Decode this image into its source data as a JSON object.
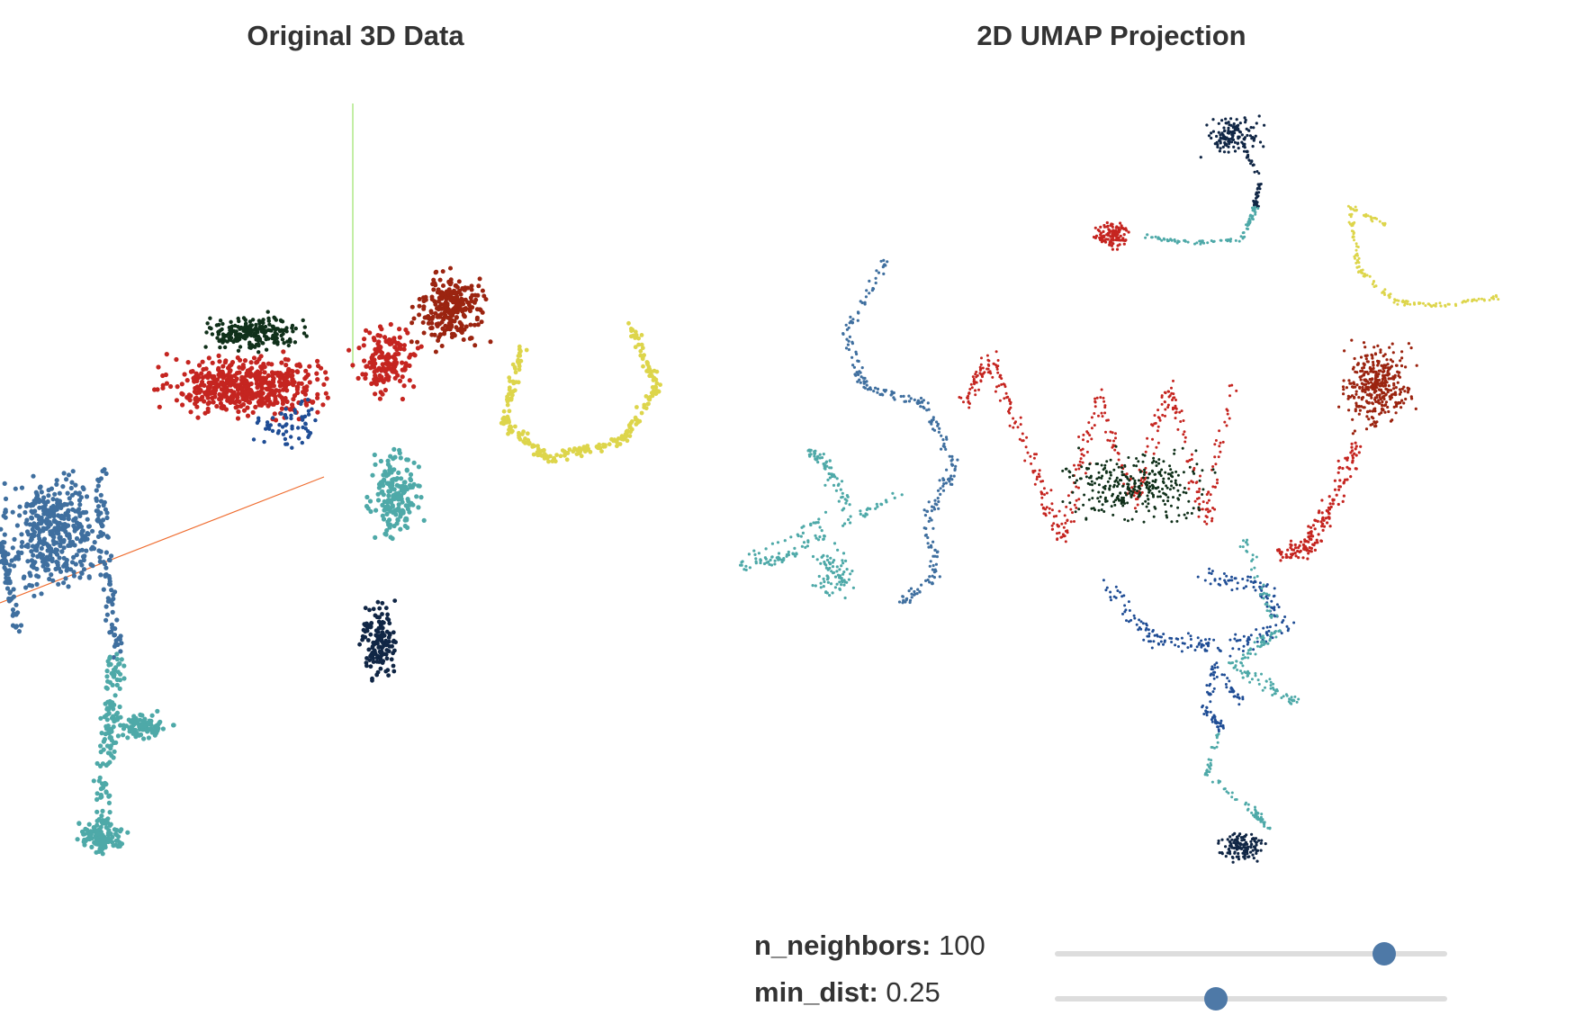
{
  "panels": {
    "left_title": "Original 3D Data",
    "right_title": "2D UMAP Projection"
  },
  "controls": {
    "n_neighbors": {
      "label": "n_neighbors:",
      "value": "100",
      "fraction": 0.84
    },
    "min_dist": {
      "label": "min_dist:",
      "value": "0.25",
      "fraction": 0.41
    }
  },
  "colors": {
    "steel_blue": "#3f6f9f",
    "teal": "#4ea9a8",
    "navy": "#102645",
    "dark_green": "#10301a",
    "red": "#c52520",
    "brown_red": "#9b2410",
    "yellow": "#ddd54b",
    "mid_blue": "#1f4d95",
    "axis_x": "#ef6c2f",
    "axis_y": "#9be36a",
    "slider_thumb": "#4e79a7",
    "slider_track": "#dddddd"
  }
}
